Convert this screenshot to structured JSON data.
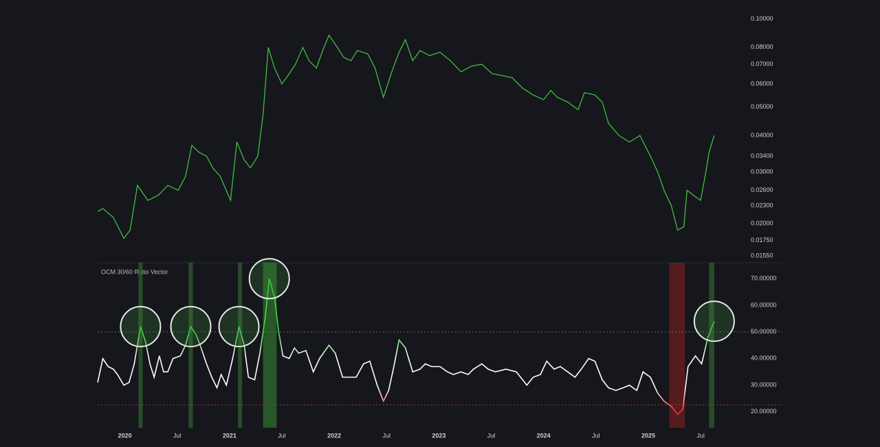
{
  "chart_data": [
    {
      "type": "line",
      "log_scale": true,
      "color": "#3fbf3f",
      "xlim": [
        2019.74,
        2025.9
      ],
      "ylim": [
        0.0147,
        0.11
      ],
      "yticks": [
        {
          "value": 0.1,
          "label": "0.10000"
        },
        {
          "value": 0.08,
          "label": "0.08000"
        },
        {
          "value": 0.07,
          "label": "0.07000"
        },
        {
          "value": 0.06,
          "label": "0.06000"
        },
        {
          "value": 0.05,
          "label": "0.05000"
        },
        {
          "value": 0.04,
          "label": "0.04000"
        },
        {
          "value": 0.034,
          "label": "0.03400"
        },
        {
          "value": 0.03,
          "label": "0.03000"
        },
        {
          "value": 0.026,
          "label": "0.02600"
        },
        {
          "value": 0.023,
          "label": "0.02300"
        },
        {
          "value": 0.02,
          "label": "0.02000"
        },
        {
          "value": 0.0175,
          "label": "0.01750"
        },
        {
          "value": 0.0155,
          "label": "0.01550"
        }
      ],
      "x": [
        2019.74,
        2019.79,
        2019.89,
        2019.99,
        2020.05,
        2020.12,
        2020.22,
        2020.32,
        2020.41,
        2020.51,
        2020.58,
        2020.64,
        2020.71,
        2020.78,
        2020.84,
        2020.91,
        2021.01,
        2021.07,
        2021.14,
        2021.2,
        2021.27,
        2021.32,
        2021.37,
        2021.43,
        2021.5,
        2021.57,
        2021.63,
        2021.7,
        2021.76,
        2021.83,
        2021.89,
        2021.95,
        2022.03,
        2022.09,
        2022.16,
        2022.22,
        2022.32,
        2022.39,
        2022.47,
        2022.55,
        2022.62,
        2022.68,
        2022.75,
        2022.82,
        2022.91,
        2023.01,
        2023.11,
        2023.21,
        2023.31,
        2023.41,
        2023.51,
        2023.61,
        2023.7,
        2023.8,
        2023.9,
        2024.0,
        2024.07,
        2024.13,
        2024.23,
        2024.33,
        2024.39,
        2024.49,
        2024.56,
        2024.62,
        2024.72,
        2024.82,
        2024.92,
        2025.02,
        2025.09,
        2025.15,
        2025.22,
        2025.28,
        2025.34,
        2025.37,
        2025.43,
        2025.5,
        2025.55,
        2025.58,
        2025.63
      ],
      "values": [
        0.022,
        0.0225,
        0.021,
        0.0178,
        0.019,
        0.027,
        0.024,
        0.025,
        0.027,
        0.026,
        0.029,
        0.037,
        0.035,
        0.034,
        0.031,
        0.029,
        0.024,
        0.038,
        0.033,
        0.031,
        0.034,
        0.047,
        0.08,
        0.068,
        0.06,
        0.065,
        0.07,
        0.08,
        0.072,
        0.068,
        0.078,
        0.088,
        0.08,
        0.074,
        0.072,
        0.078,
        0.076,
        0.068,
        0.054,
        0.066,
        0.077,
        0.085,
        0.072,
        0.078,
        0.075,
        0.077,
        0.072,
        0.066,
        0.069,
        0.07,
        0.065,
        0.064,
        0.063,
        0.058,
        0.055,
        0.053,
        0.057,
        0.054,
        0.052,
        0.049,
        0.056,
        0.055,
        0.052,
        0.044,
        0.04,
        0.038,
        0.04,
        0.034,
        0.03,
        0.026,
        0.023,
        0.019,
        0.0195,
        0.026,
        0.025,
        0.024,
        0.03,
        0.035,
        0.04
      ]
    },
    {
      "type": "oscillator",
      "title": "OCM 30/60 Ratio Vector",
      "colors": {
        "high": "#3ddc3d",
        "mid": "#ffffff",
        "low": "#ff2a2a"
      },
      "xlim": [
        2019.74,
        2025.9
      ],
      "ylim": [
        14,
        76
      ],
      "xticks": [
        {
          "value": 2020,
          "label": "2020"
        },
        {
          "value": 2020.5,
          "label": "Jul"
        },
        {
          "value": 2021,
          "label": "2021"
        },
        {
          "value": 2021.5,
          "label": "Jul"
        },
        {
          "value": 2022,
          "label": "2022"
        },
        {
          "value": 2022.5,
          "label": "Jul"
        },
        {
          "value": 2023,
          "label": "2023"
        },
        {
          "value": 2023.5,
          "label": "Jul"
        },
        {
          "value": 2024,
          "label": "2024"
        },
        {
          "value": 2024.5,
          "label": "Jul"
        },
        {
          "value": 2025,
          "label": "2025"
        },
        {
          "value": 2025.5,
          "label": "Jul"
        }
      ],
      "yticks": [
        {
          "value": 70,
          "label": "70.00000"
        },
        {
          "value": 60,
          "label": "60.00000"
        },
        {
          "value": 50,
          "label": "50.00000"
        },
        {
          "value": 40,
          "label": "40.00000"
        },
        {
          "value": 30,
          "label": "30.00000"
        },
        {
          "value": 20,
          "label": "20.00000"
        }
      ],
      "reference_lines": [
        {
          "value": 50,
          "color": "#6a6a6a"
        },
        {
          "value": 22.6,
          "color": "#a33a3a"
        }
      ],
      "highlights": [
        {
          "start": 2020.13,
          "end": 2020.17,
          "color": "#2f5e2f",
          "marker": "circle"
        },
        {
          "start": 2020.61,
          "end": 2020.65,
          "color": "#2f5e2f",
          "marker": "circle"
        },
        {
          "start": 2021.08,
          "end": 2021.12,
          "color": "#2f5e2f",
          "marker": "circle"
        },
        {
          "start": 2021.32,
          "end": 2021.45,
          "color": "#2f6e2f",
          "marker": "circle"
        },
        {
          "start": 2025.58,
          "end": 2025.63,
          "color": "#2f5e2f",
          "marker": "circle"
        },
        {
          "start": 2025.2,
          "end": 2025.35,
          "color": "#6b1f22"
        }
      ],
      "x": [
        2019.74,
        2019.79,
        2019.84,
        2019.89,
        2019.93,
        2019.99,
        2020.04,
        2020.09,
        2020.15,
        2020.2,
        2020.24,
        2020.28,
        2020.33,
        2020.37,
        2020.41,
        2020.46,
        2020.53,
        2020.58,
        2020.63,
        2020.68,
        2020.72,
        2020.78,
        2020.83,
        2020.88,
        2020.92,
        2020.97,
        2021.03,
        2021.09,
        2021.14,
        2021.18,
        2021.24,
        2021.29,
        2021.34,
        2021.38,
        2021.43,
        2021.47,
        2021.51,
        2021.57,
        2021.62,
        2021.66,
        2021.73,
        2021.8,
        2021.86,
        2021.95,
        2022.01,
        2022.08,
        2022.14,
        2022.21,
        2022.28,
        2022.34,
        2022.41,
        2022.47,
        2022.52,
        2022.57,
        2022.62,
        2022.68,
        2022.75,
        2022.82,
        2022.87,
        2022.93,
        2023.01,
        2023.08,
        2023.14,
        2023.21,
        2023.28,
        2023.33,
        2023.41,
        2023.47,
        2023.54,
        2023.64,
        2023.74,
        2023.84,
        2023.9,
        2023.97,
        2024.03,
        2024.1,
        2024.16,
        2024.23,
        2024.3,
        2024.36,
        2024.43,
        2024.49,
        2024.56,
        2024.62,
        2024.69,
        2024.76,
        2024.82,
        2024.89,
        2024.95,
        2025.02,
        2025.09,
        2025.15,
        2025.22,
        2025.28,
        2025.33,
        2025.38,
        2025.45,
        2025.51,
        2025.57,
        2025.63
      ],
      "values": [
        31,
        40,
        37,
        36,
        34,
        30,
        31,
        38,
        52,
        46,
        38,
        33,
        41,
        35,
        35,
        40,
        41,
        45,
        52,
        49,
        45,
        38,
        33,
        29,
        34,
        30,
        40,
        52,
        45,
        33,
        32,
        42,
        55,
        70,
        63,
        50,
        41,
        40,
        44,
        42,
        43,
        35,
        40,
        45,
        42,
        33,
        33,
        33,
        38,
        39,
        30,
        24,
        28,
        37,
        47,
        44,
        35,
        36,
        38,
        37,
        37,
        35,
        34,
        35,
        34,
        36,
        38,
        36,
        35,
        36,
        35,
        30,
        33,
        34,
        39,
        36,
        37,
        35,
        33,
        36,
        40,
        39,
        32,
        29,
        28,
        29,
        30,
        28,
        35,
        33,
        27,
        24,
        22,
        19,
        21,
        37,
        41,
        38,
        48,
        54
      ]
    }
  ]
}
